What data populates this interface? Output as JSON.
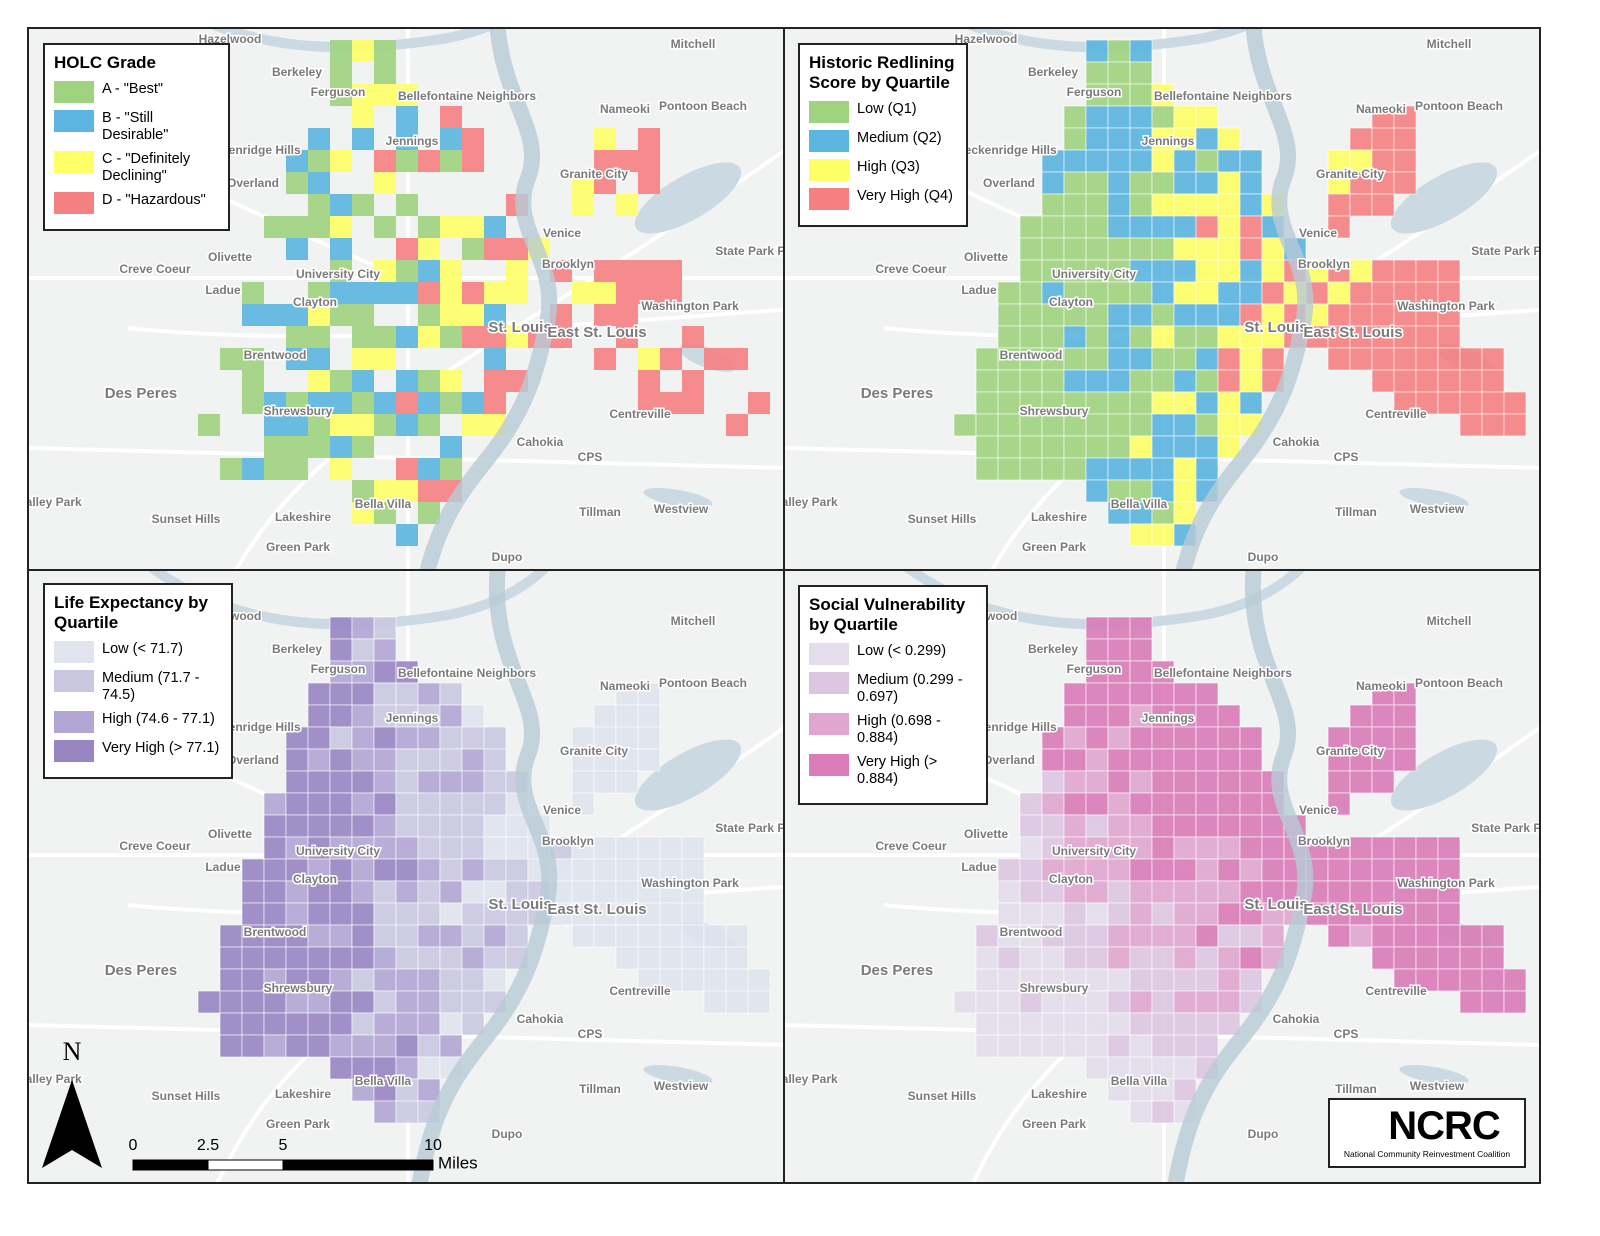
{
  "panels": [
    {
      "legend": {
        "title": "HOLC Grade",
        "items": [
          {
            "label": "A - \"Best\"",
            "color": "#9fd37f"
          },
          {
            "label": "B - \"Still Desirable\"",
            "color": "#5bb5e0"
          },
          {
            "label": "C - \"Definitely Declining\"",
            "color": "#ffff66"
          },
          {
            "label": "D - \"Hazardous\"",
            "color": "#f58081"
          }
        ]
      }
    },
    {
      "legend": {
        "title": "Historic Redlining Score by Quartile",
        "items": [
          {
            "label": "Low (Q1)",
            "color": "#9fd37f"
          },
          {
            "label": "Medium (Q2)",
            "color": "#5bb5e0"
          },
          {
            "label": "High (Q3)",
            "color": "#ffff66"
          },
          {
            "label": "Very High (Q4)",
            "color": "#f58081"
          }
        ]
      }
    },
    {
      "legend": {
        "title": "Life Expectancy by Quartile",
        "items": [
          {
            "label": "Low (< 71.7)",
            "color": "#dfe4ee"
          },
          {
            "label": "Medium (71.7 - 74.5)",
            "color": "#cac8e1"
          },
          {
            "label": "High (74.6 - 77.1)",
            "color": "#b2a6d5"
          },
          {
            "label": "Very High (> 77.1)",
            "color": "#9886c3"
          }
        ]
      }
    },
    {
      "legend": {
        "title": "Social Vulnerability by Quartile",
        "items": [
          {
            "label": "Low (< 0.299)",
            "color": "#e4ddec"
          },
          {
            "label": "Medium (0.299 - 0.697)",
            "color": "#dcc6e1"
          },
          {
            "label": "High (0.698 - 0.884)",
            "color": "#e0a6d0"
          },
          {
            "label": "Very High (> 0.884)",
            "color": "#d97cb8"
          }
        ]
      }
    }
  ],
  "places": [
    "Hazelwood",
    "Mitchell",
    "Berkeley",
    "Ferguson",
    "Bellefontaine Neighbors",
    "Nameoki",
    "Pontoon Beach",
    "Jennings",
    "Granite City",
    "Breckenridge Hills",
    "Overland",
    "Creve Coeur",
    "Olivette",
    "University City",
    "Ladue",
    "Clayton",
    "Venice",
    "Brooklyn",
    "State Park Place",
    "Washington Park",
    "St. Louis",
    "East St. Louis",
    "Brentwood",
    "Des Peres",
    "Shrewsbury",
    "Centreville",
    "Cahokia",
    "CPS",
    "Valley Park",
    "Sunset Hills",
    "Lakeshire",
    "Bella Villa",
    "Tillman",
    "Westview",
    "Green Park",
    "Dupo"
  ],
  "north_arrow": "N",
  "scale_bar": {
    "ticks": [
      0,
      2.5,
      5,
      10
    ],
    "unit": "Miles"
  },
  "logo": {
    "name": "NCRC",
    "tagline": "National Community Reinvestment Coalition"
  }
}
